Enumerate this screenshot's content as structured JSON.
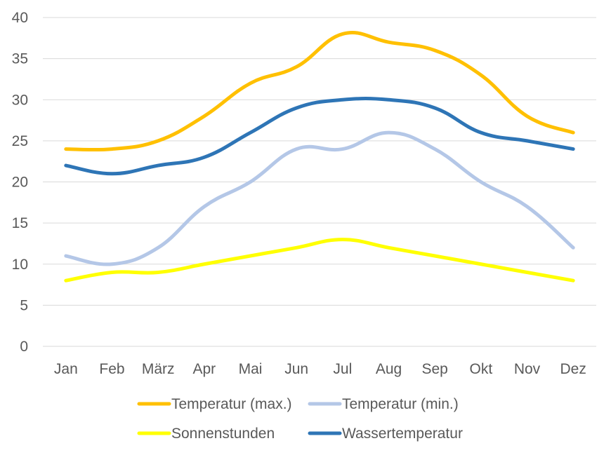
{
  "chart_data": {
    "type": "line",
    "title": "",
    "xlabel": "",
    "ylabel": "",
    "categories": [
      "Jan",
      "Feb",
      "März",
      "Apr",
      "Mai",
      "Jun",
      "Jul",
      "Aug",
      "Sep",
      "Okt",
      "Nov",
      "Dez"
    ],
    "ylim": [
      0,
      40
    ],
    "yticks": [
      0,
      5,
      10,
      15,
      20,
      25,
      30,
      35,
      40
    ],
    "grid": true,
    "smooth": true,
    "legend_position": "bottom",
    "series": [
      {
        "name": "Temperatur (max.)",
        "color": "#FFC000",
        "values": [
          24,
          24,
          25,
          28,
          32,
          34,
          38,
          37,
          36,
          33,
          28,
          26
        ]
      },
      {
        "name": "Temperatur (min.)",
        "color": "#B4C7E7",
        "values": [
          11,
          10,
          12,
          17,
          20,
          24,
          24,
          26,
          24,
          20,
          17,
          12
        ]
      },
      {
        "name": "Sonnenstunden",
        "color": "#FFFF00",
        "values": [
          8,
          9,
          9,
          10,
          11,
          12,
          13,
          12,
          11,
          10,
          9,
          8
        ]
      },
      {
        "name": "Wassertemperatur",
        "color": "#2E75B6",
        "values": [
          22,
          21,
          22,
          23,
          26,
          29,
          30,
          30,
          29,
          26,
          25,
          24
        ]
      }
    ]
  }
}
